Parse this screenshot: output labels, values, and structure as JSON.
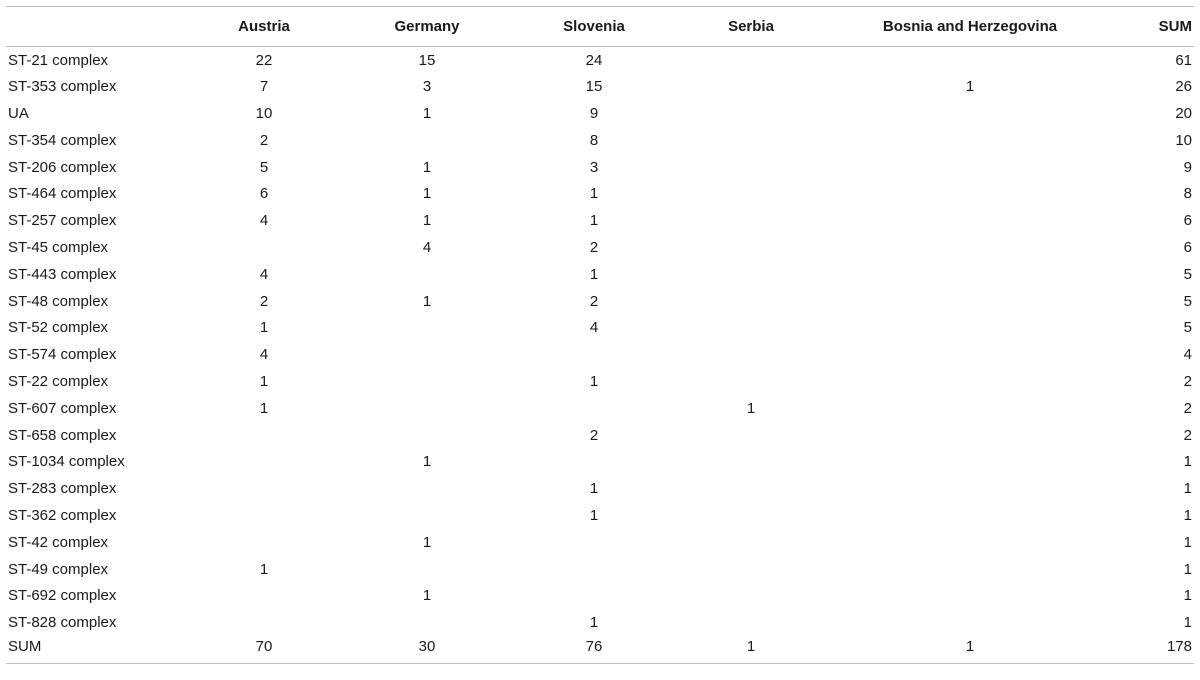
{
  "table": {
    "headers": [
      "",
      "Austria",
      "Germany",
      "Slovenia",
      "Serbia",
      "Bosnia and Herzegovina",
      "SUM"
    ],
    "rows": [
      [
        "ST-21 complex",
        "22",
        "15",
        "24",
        "",
        "",
        "61"
      ],
      [
        "ST-353 complex",
        "7",
        "3",
        "15",
        "",
        "1",
        "26"
      ],
      [
        "UA",
        "10",
        "1",
        "9",
        "",
        "",
        "20"
      ],
      [
        "ST-354 complex",
        "2",
        "",
        "8",
        "",
        "",
        "10"
      ],
      [
        "ST-206 complex",
        "5",
        "1",
        "3",
        "",
        "",
        "9"
      ],
      [
        "ST-464 complex",
        "6",
        "1",
        "1",
        "",
        "",
        "8"
      ],
      [
        "ST-257 complex",
        "4",
        "1",
        "1",
        "",
        "",
        "6"
      ],
      [
        "ST-45 complex",
        "",
        "4",
        "2",
        "",
        "",
        "6"
      ],
      [
        "ST-443 complex",
        "4",
        "",
        "1",
        "",
        "",
        "5"
      ],
      [
        "ST-48 complex",
        "2",
        "1",
        "2",
        "",
        "",
        "5"
      ],
      [
        "ST-52 complex",
        "1",
        "",
        "4",
        "",
        "",
        "5"
      ],
      [
        "ST-574 complex",
        "4",
        "",
        "",
        "",
        "",
        "4"
      ],
      [
        "ST-22 complex",
        "1",
        "",
        "1",
        "",
        "",
        "2"
      ],
      [
        "ST-607 complex",
        "1",
        "",
        "",
        "1",
        "",
        "2"
      ],
      [
        "ST-658 complex",
        "",
        "",
        "2",
        "",
        "",
        "2"
      ],
      [
        "ST-1034 complex",
        "",
        "1",
        "",
        "",
        "",
        "1"
      ],
      [
        "ST-283 complex",
        "",
        "",
        "1",
        "",
        "",
        "1"
      ],
      [
        "ST-362 complex",
        "",
        "",
        "1",
        "",
        "",
        "1"
      ],
      [
        "ST-42 complex",
        "",
        "1",
        "",
        "",
        "",
        "1"
      ],
      [
        "ST-49 complex",
        "1",
        "",
        "",
        "",
        "",
        "1"
      ],
      [
        "ST-692 complex",
        "",
        "1",
        "",
        "",
        "",
        "1"
      ],
      [
        "ST-828 complex",
        "",
        "",
        "1",
        "",
        "",
        "1"
      ],
      [
        "SUM",
        "70",
        "30",
        "76",
        "1",
        "1",
        "178"
      ]
    ]
  },
  "colors": {
    "rule": "#bfbfbf",
    "text": "#1a1a1a",
    "background": "#ffffff"
  }
}
